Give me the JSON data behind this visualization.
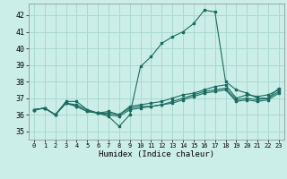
{
  "xlabel": "Humidex (Indice chaleur)",
  "ylabel": "",
  "xlim": [
    -0.5,
    23.5
  ],
  "ylim": [
    34.5,
    42.7
  ],
  "yticks": [
    35,
    36,
    37,
    38,
    39,
    40,
    41,
    42
  ],
  "xticks": [
    0,
    1,
    2,
    3,
    4,
    5,
    6,
    7,
    8,
    9,
    10,
    11,
    12,
    13,
    14,
    15,
    16,
    17,
    18,
    19,
    20,
    21,
    22,
    23
  ],
  "background_color": "#cceee8",
  "grid_color": "#aad8d2",
  "line_color": "#1a6b60",
  "curves": [
    [
      36.3,
      36.4,
      36.0,
      36.8,
      36.8,
      36.3,
      36.1,
      35.9,
      35.3,
      36.0,
      38.9,
      39.5,
      40.3,
      40.7,
      41.0,
      41.5,
      42.3,
      42.2,
      38.0,
      37.5,
      37.3,
      37.0,
      37.0,
      37.6
    ],
    [
      36.3,
      36.4,
      36.0,
      36.7,
      36.6,
      36.3,
      36.1,
      36.2,
      36.0,
      36.5,
      36.6,
      36.7,
      36.8,
      37.0,
      37.2,
      37.3,
      37.5,
      37.7,
      37.8,
      37.0,
      37.2,
      37.1,
      37.2,
      37.5
    ],
    [
      36.3,
      36.4,
      36.0,
      36.7,
      36.5,
      36.2,
      36.1,
      36.1,
      36.0,
      36.4,
      36.5,
      36.5,
      36.6,
      36.8,
      37.0,
      37.2,
      37.4,
      37.5,
      37.6,
      36.9,
      37.0,
      36.9,
      37.0,
      37.4
    ],
    [
      36.3,
      36.4,
      36.0,
      36.7,
      36.5,
      36.2,
      36.1,
      36.0,
      35.9,
      36.3,
      36.4,
      36.5,
      36.6,
      36.7,
      36.9,
      37.1,
      37.3,
      37.4,
      37.5,
      36.8,
      36.9,
      36.8,
      36.9,
      37.3
    ]
  ]
}
